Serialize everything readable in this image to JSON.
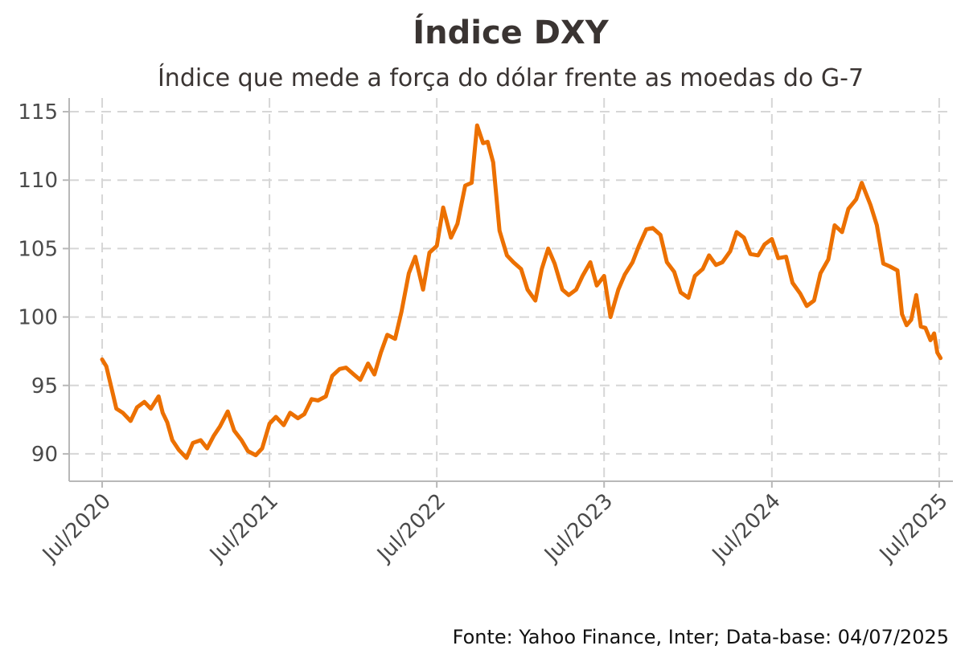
{
  "chart_data": {
    "type": "line",
    "title": "Índice DXY",
    "subtitle": "Índice que mede a força do dólar frente as moedas do G-7",
    "caption": "Fonte: Yahoo Finance, Inter; Data-base: 04/07/2025",
    "xlabel": "",
    "ylabel": "",
    "ylim": [
      88,
      116
    ],
    "y_ticks": [
      90,
      95,
      100,
      105,
      110,
      115
    ],
    "x_ticks": [
      {
        "label": "Jul/2020",
        "date": "2020-07-01"
      },
      {
        "label": "Jul/2021",
        "date": "2021-07-01"
      },
      {
        "label": "Jul/2022",
        "date": "2022-07-01"
      },
      {
        "label": "Jul/2023",
        "date": "2023-07-01"
      },
      {
        "label": "Jul/2024",
        "date": "2024-07-01"
      },
      {
        "label": "Jul/2025",
        "date": "2025-07-01"
      }
    ],
    "xlim": [
      "2020-04-20",
      "2025-07-31"
    ],
    "grid": true,
    "colors": {
      "line": "#EC7000",
      "grid": "#d6d6d6",
      "axis": "#b8b8b8",
      "text": "#3a3432"
    },
    "series": [
      {
        "points": [
          [
            "2020-07-01",
            96.9
          ],
          [
            "2020-07-10",
            96.4
          ],
          [
            "2020-07-20",
            95.0
          ],
          [
            "2020-08-01",
            93.3
          ],
          [
            "2020-08-15",
            93.0
          ],
          [
            "2020-09-01",
            92.4
          ],
          [
            "2020-09-15",
            93.4
          ],
          [
            "2020-10-01",
            93.8
          ],
          [
            "2020-10-15",
            93.3
          ],
          [
            "2020-11-01",
            94.2
          ],
          [
            "2020-11-10",
            93.0
          ],
          [
            "2020-11-20",
            92.3
          ],
          [
            "2020-12-01",
            91.0
          ],
          [
            "2020-12-15",
            90.3
          ],
          [
            "2021-01-01",
            89.7
          ],
          [
            "2021-01-15",
            90.8
          ],
          [
            "2021-02-01",
            91.0
          ],
          [
            "2021-02-15",
            90.4
          ],
          [
            "2021-03-01",
            91.3
          ],
          [
            "2021-03-15",
            92.0
          ],
          [
            "2021-04-01",
            93.1
          ],
          [
            "2021-04-15",
            91.7
          ],
          [
            "2021-05-01",
            91.0
          ],
          [
            "2021-05-15",
            90.2
          ],
          [
            "2021-06-01",
            89.9
          ],
          [
            "2021-06-15",
            90.4
          ],
          [
            "2021-07-01",
            92.2
          ],
          [
            "2021-07-15",
            92.7
          ],
          [
            "2021-08-01",
            92.1
          ],
          [
            "2021-08-15",
            93.0
          ],
          [
            "2021-09-01",
            92.6
          ],
          [
            "2021-09-15",
            92.9
          ],
          [
            "2021-10-01",
            94.0
          ],
          [
            "2021-10-15",
            93.9
          ],
          [
            "2021-11-01",
            94.2
          ],
          [
            "2021-11-15",
            95.7
          ],
          [
            "2021-12-01",
            96.2
          ],
          [
            "2021-12-15",
            96.3
          ],
          [
            "2022-01-01",
            95.8
          ],
          [
            "2022-01-15",
            95.4
          ],
          [
            "2022-02-01",
            96.6
          ],
          [
            "2022-02-15",
            95.8
          ],
          [
            "2022-03-01",
            97.4
          ],
          [
            "2022-03-15",
            98.7
          ],
          [
            "2022-04-01",
            98.4
          ],
          [
            "2022-04-15",
            100.4
          ],
          [
            "2022-05-01",
            103.2
          ],
          [
            "2022-05-15",
            104.4
          ],
          [
            "2022-06-01",
            102.0
          ],
          [
            "2022-06-15",
            104.7
          ],
          [
            "2022-07-01",
            105.2
          ],
          [
            "2022-07-15",
            108.0
          ],
          [
            "2022-08-01",
            105.8
          ],
          [
            "2022-08-15",
            106.8
          ],
          [
            "2022-09-01",
            109.6
          ],
          [
            "2022-09-15",
            109.8
          ],
          [
            "2022-09-27",
            114.0
          ],
          [
            "2022-10-10",
            112.7
          ],
          [
            "2022-10-20",
            112.8
          ],
          [
            "2022-11-01",
            111.3
          ],
          [
            "2022-11-15",
            106.3
          ],
          [
            "2022-12-01",
            104.5
          ],
          [
            "2022-12-15",
            104.0
          ],
          [
            "2023-01-01",
            103.5
          ],
          [
            "2023-01-15",
            102.0
          ],
          [
            "2023-02-01",
            101.2
          ],
          [
            "2023-02-15",
            103.5
          ],
          [
            "2023-03-01",
            105.0
          ],
          [
            "2023-03-15",
            103.9
          ],
          [
            "2023-04-01",
            102.0
          ],
          [
            "2023-04-15",
            101.6
          ],
          [
            "2023-05-01",
            102.0
          ],
          [
            "2023-05-15",
            103.0
          ],
          [
            "2023-06-01",
            104.0
          ],
          [
            "2023-06-15",
            102.3
          ],
          [
            "2023-07-01",
            103.0
          ],
          [
            "2023-07-15",
            100.0
          ],
          [
            "2023-08-01",
            102.0
          ],
          [
            "2023-08-15",
            103.1
          ],
          [
            "2023-09-01",
            104.0
          ],
          [
            "2023-09-15",
            105.2
          ],
          [
            "2023-10-01",
            106.4
          ],
          [
            "2023-10-15",
            106.5
          ],
          [
            "2023-11-01",
            106.0
          ],
          [
            "2023-11-15",
            104.0
          ],
          [
            "2023-12-01",
            103.3
          ],
          [
            "2023-12-15",
            101.8
          ],
          [
            "2024-01-01",
            101.4
          ],
          [
            "2024-01-15",
            103.0
          ],
          [
            "2024-02-01",
            103.5
          ],
          [
            "2024-02-15",
            104.5
          ],
          [
            "2024-03-01",
            103.8
          ],
          [
            "2024-03-15",
            104.0
          ],
          [
            "2024-04-01",
            104.8
          ],
          [
            "2024-04-15",
            106.2
          ],
          [
            "2024-05-01",
            105.8
          ],
          [
            "2024-05-15",
            104.6
          ],
          [
            "2024-06-01",
            104.5
          ],
          [
            "2024-06-15",
            105.3
          ],
          [
            "2024-07-01",
            105.7
          ],
          [
            "2024-07-15",
            104.3
          ],
          [
            "2024-08-01",
            104.4
          ],
          [
            "2024-08-15",
            102.5
          ],
          [
            "2024-09-01",
            101.7
          ],
          [
            "2024-09-15",
            100.8
          ],
          [
            "2024-10-01",
            101.2
          ],
          [
            "2024-10-15",
            103.2
          ],
          [
            "2024-11-01",
            104.2
          ],
          [
            "2024-11-15",
            106.7
          ],
          [
            "2024-12-01",
            106.2
          ],
          [
            "2024-12-15",
            107.9
          ],
          [
            "2025-01-01",
            108.6
          ],
          [
            "2025-01-13",
            109.8
          ],
          [
            "2025-02-01",
            108.2
          ],
          [
            "2025-02-15",
            106.7
          ],
          [
            "2025-03-01",
            103.9
          ],
          [
            "2025-03-15",
            103.7
          ],
          [
            "2025-04-01",
            103.4
          ],
          [
            "2025-04-11",
            100.2
          ],
          [
            "2025-04-21",
            99.4
          ],
          [
            "2025-05-01",
            99.8
          ],
          [
            "2025-05-12",
            101.6
          ],
          [
            "2025-05-22",
            99.3
          ],
          [
            "2025-06-01",
            99.2
          ],
          [
            "2025-06-12",
            98.3
          ],
          [
            "2025-06-20",
            98.8
          ],
          [
            "2025-06-27",
            97.4
          ],
          [
            "2025-07-04",
            97.0
          ]
        ]
      }
    ]
  }
}
